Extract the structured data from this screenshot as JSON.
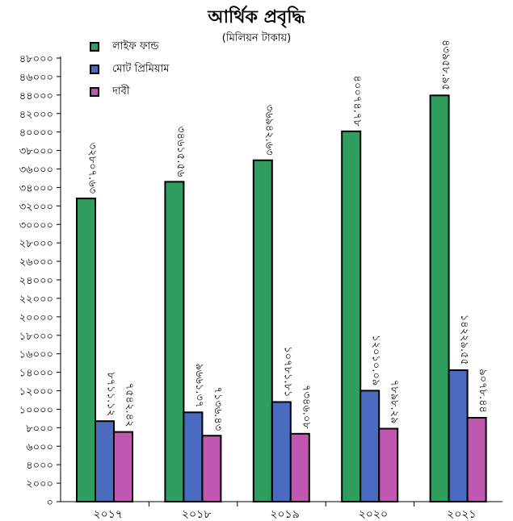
{
  "title": "আর্থিক প্রবৃদ্ধি",
  "subtitle": "(মিলিয়ন টাকায়)",
  "colors": {
    "life_fund": "#2e9d5e",
    "premium": "#4a6cc0",
    "claims": "#c057b0"
  },
  "legend": [
    {
      "name": "লাইফ ফান্ড",
      "color": "#2e9d5e"
    },
    {
      "name": "মোট প্রিমিয়াম",
      "color": "#4a6cc0"
    },
    {
      "name": "দাবী",
      "color": "#c057b0"
    }
  ],
  "chart_data": {
    "type": "bar",
    "title": "আর্থিক প্রবৃদ্ধি",
    "subtitle": "(মিলিয়ন টাকায়)",
    "categories": [
      "২০১৭",
      "২০১৮",
      "২০১৯",
      "২০২০",
      "২০২১"
    ],
    "series": [
      {
        "name": "লাইফ ফান্ড",
        "color": "#2e9d5e",
        "values": [
          32807.63,
          34615.56,
          36942.63,
          40074.78,
          43958.95
        ],
        "labels": [
          "৩২৮০৭.৬৩",
          "৩৪৬১৫.৫৬",
          "৩৬৯৪২.৬৩",
          "৪০০৭৪.৭৮",
          "৪৩৯৫৮.৯৫"
        ]
      },
      {
        "name": "মোট প্রিমিয়াম",
        "color": "#4a6cc0",
        "values": [
          8711.12,
          9661.37,
          10781.81,
          12010.09,
          14229.55
        ],
        "labels": [
          "৮৭১১.১২",
          "৯৬৬১.৩৭",
          "১০৭৮১.৮১",
          "১২০১০.০৯",
          "১৪২২৯.৫৫"
        ]
      },
      {
        "name": "দাবী",
        "color": "#c057b0",
        "values": [
          7542.42,
          7136.43,
          7346.08,
          7898.29,
          9078.44
        ],
        "labels": [
          "৭৫৪২.৪২",
          "৭১৩৬.৪৩",
          "৭৩৪৬.০৮",
          "৭৮৯৮.২৯",
          "৯০৭৮.৪৪"
        ]
      }
    ],
    "ylim": [
      0,
      48000
    ],
    "yticks": [
      0,
      2000,
      4000,
      6000,
      8000,
      10000,
      12000,
      14000,
      16000,
      18000,
      20000,
      22000,
      24000,
      26000,
      28000,
      30000,
      32000,
      34000,
      36000,
      38000,
      40000,
      42000,
      44000,
      46000,
      48000
    ],
    "ytick_labels": [
      "০",
      "২০০০",
      "৪০০০",
      "৬০০০",
      "৮০০০",
      "১০০০০",
      "১২০০০",
      "১৪০০০",
      "১৬০০০",
      "১৮০০০",
      "২০০০০",
      "২২০০০",
      "২৪০০০",
      "২৬০০০",
      "২৮০০০",
      "৩০০০০",
      "৩২০০০",
      "৩৪০০০",
      "৩৬০০০",
      "৩৮০০০",
      "৪০০০০",
      "৪২০০০",
      "৪৪০০০",
      "৪৬০০০",
      "৪৮০০০"
    ],
    "grid": false,
    "legend_position": "top-left"
  }
}
